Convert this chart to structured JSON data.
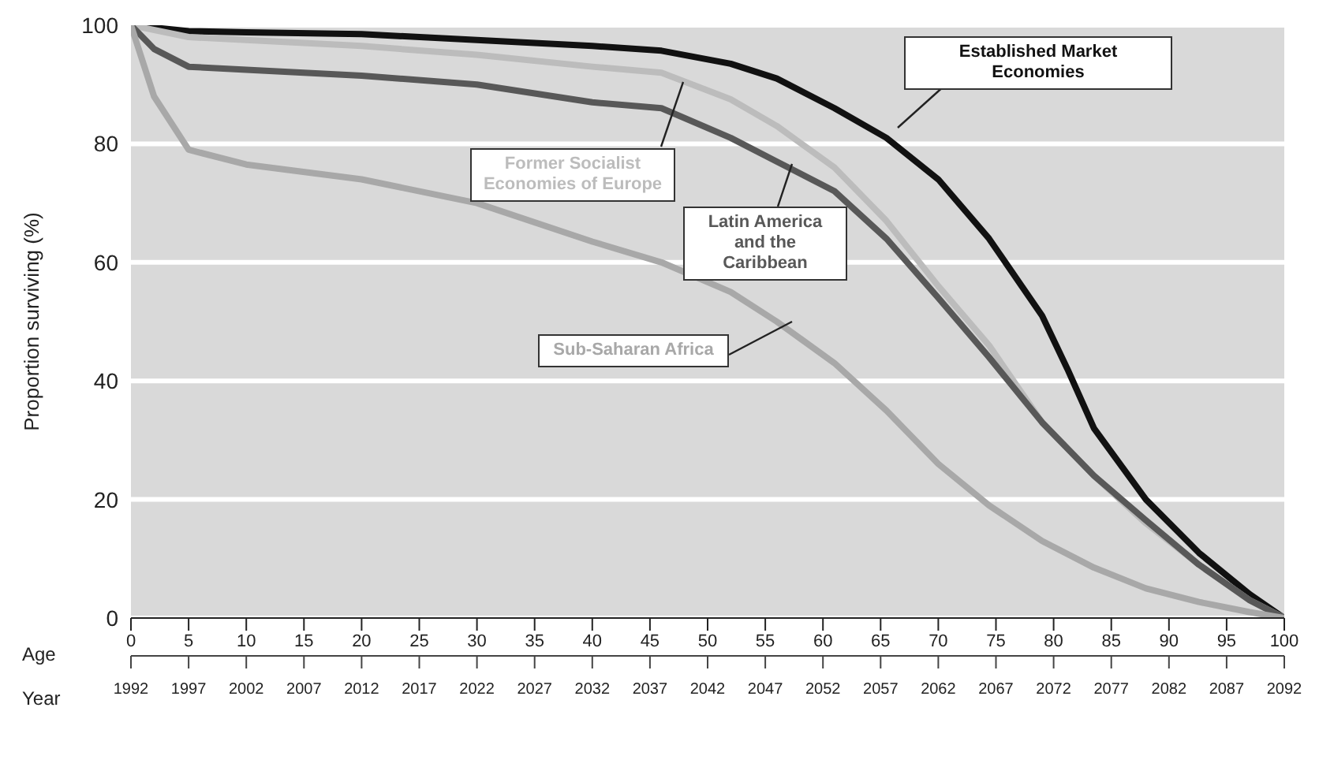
{
  "chart_data": {
    "type": "line",
    "xlabel": "Age",
    "ylabel": "Proportion surviving (%)",
    "x2label": "Year",
    "xlim": [
      0,
      100
    ],
    "xticks": [
      0,
      5,
      10,
      15,
      20,
      25,
      30,
      35,
      40,
      45,
      50,
      55,
      60,
      65,
      70,
      75,
      80,
      85,
      90,
      95,
      100
    ],
    "x2lim": [
      1992,
      2092
    ],
    "x2ticks": [
      1992,
      1997,
      2002,
      2007,
      2012,
      2017,
      2022,
      2027,
      2032,
      2037,
      2042,
      2047,
      2052,
      2057,
      2062,
      2067,
      2072,
      2077,
      2082,
      2087,
      2092
    ],
    "ylim": [
      0,
      100
    ],
    "yticks": [
      0,
      20,
      40,
      60,
      80,
      100
    ],
    "grid": "y",
    "legend": false,
    "marker": "none",
    "line_style": "solid",
    "series": [
      {
        "name": "Established Market Economies",
        "color": "#111111",
        "x": [
          0,
          5,
          10,
          20,
          30,
          40,
          46,
          52,
          56,
          61,
          65.5,
          70,
          74.4,
          79,
          81.2,
          83.5,
          88,
          92.6,
          97,
          100
        ],
        "values": [
          100,
          99,
          98.8,
          98.5,
          97.5,
          96.5,
          95.7,
          93.5,
          91,
          86,
          81,
          74,
          64,
          51,
          42,
          32,
          20,
          11,
          4,
          0
        ]
      },
      {
        "name": "Former Socialist Economies of Europe",
        "color": "#bcbcbc",
        "x": [
          0,
          5,
          10,
          20,
          30,
          40,
          46,
          52,
          56,
          61,
          65.5,
          70,
          74.4,
          79,
          83.5,
          88,
          92.6,
          97,
          100
        ],
        "values": [
          100,
          98,
          97.5,
          96.5,
          95,
          93,
          92,
          87.5,
          83,
          76,
          67,
          56,
          46,
          33,
          24,
          16,
          9,
          3,
          0
        ]
      },
      {
        "name": "Latin America and the Caribbean",
        "color": "#585858",
        "x": [
          0,
          2,
          5,
          10,
          20,
          30,
          40,
          46,
          52,
          56,
          61,
          65.5,
          70,
          74.4,
          79,
          83.5,
          88,
          92.6,
          97,
          100
        ],
        "values": [
          100,
          96,
          93,
          92.5,
          91.5,
          90,
          87,
          86,
          81,
          77,
          72,
          64,
          54,
          44,
          33,
          24,
          16.5,
          9,
          3,
          0
        ]
      },
      {
        "name": "Sub-Saharan Africa",
        "color": "#a8a8a8",
        "x": [
          0,
          2,
          5,
          10,
          20,
          30,
          40,
          46,
          52,
          56,
          61,
          65.5,
          70,
          74.4,
          79,
          83.5,
          88,
          92.6,
          97,
          100
        ],
        "values": [
          100,
          88,
          79,
          76.5,
          74,
          70,
          63.5,
          60,
          55,
          50,
          43,
          35,
          26,
          19,
          13,
          8.5,
          5,
          2.7,
          1,
          0
        ]
      }
    ]
  }
}
